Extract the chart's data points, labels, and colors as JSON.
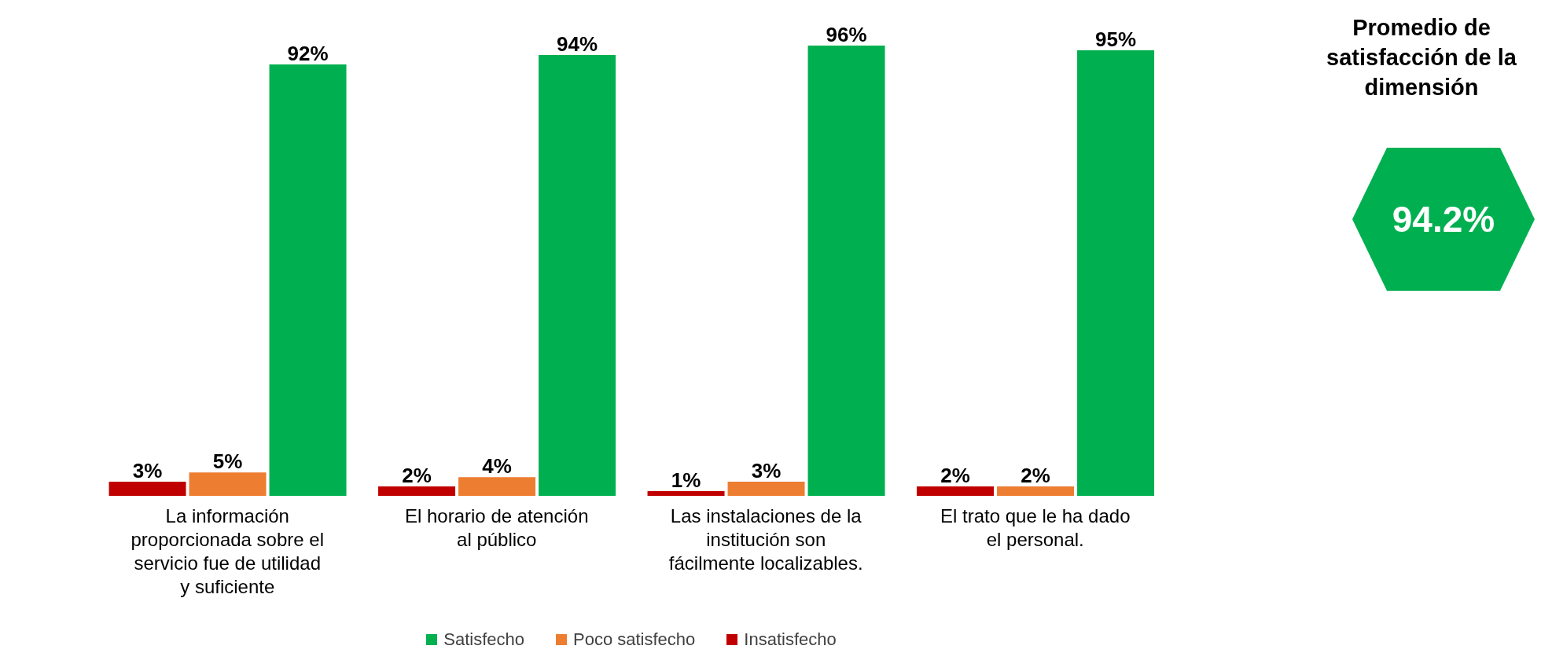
{
  "chart_data": {
    "type": "bar",
    "categories": [
      "La información proporcionada sobre el servicio fue de utilidad y suficiente",
      "El horario de atención al público",
      "Las instalaciones de la institución son fácilmente localizables.",
      "El trato que le ha dado el personal."
    ],
    "series": [
      {
        "name": "Satisfecho",
        "color": "#00b050",
        "values": [
          92,
          94,
          96,
          95
        ],
        "value_labels": [
          "92%",
          "94%",
          "96%",
          "95%"
        ]
      },
      {
        "name": "Poco satisfecho",
        "color": "#ed7d31",
        "values": [
          5,
          4,
          3,
          2
        ],
        "value_labels": [
          "5%",
          "4%",
          "3%",
          "2%"
        ]
      },
      {
        "name": "Insatisfecho",
        "color": "#c00000",
        "values": [
          3,
          2,
          1,
          2
        ],
        "value_labels": [
          "3%",
          "2%",
          "1%",
          "2%"
        ]
      }
    ],
    "legend": "bottom",
    "annotations": [
      "Promedio de satisfacción de la dimensión",
      "94.2%"
    ]
  }
}
